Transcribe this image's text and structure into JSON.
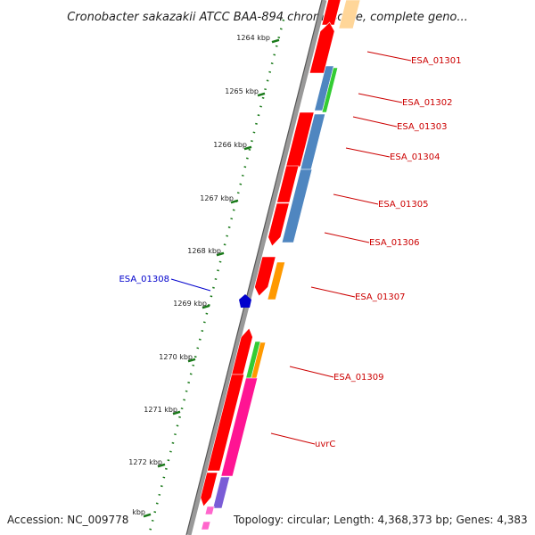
{
  "title": "Cronobacter sakazakii ATCC BAA-894 chromosome, complete geno...",
  "footer": {
    "accession": "Accession: NC_009778",
    "topology": "Topology: circular; Length: 4,368,373 bp; Genes: 4,383"
  },
  "colors": {
    "label": "#cc0000",
    "label_highlight": "#0000cc",
    "backbone": "#888888",
    "tick": "#1a7a1a",
    "red": "#ff0000",
    "blue": "#4f86c0",
    "green": "#33cc33",
    "orange": "#ff9900",
    "magenta": "#ff1493",
    "purple": "#7a5cd6",
    "pink": "#ff66cc",
    "peach": "#ffd699"
  },
  "ticks": [
    {
      "label": "1264 kbp"
    },
    {
      "label": "1265 kbp"
    },
    {
      "label": "1266 kbp"
    },
    {
      "label": "1267 kbp"
    },
    {
      "label": "1268 kbp"
    },
    {
      "label": "1269 kbp"
    },
    {
      "label": "1270 kbp"
    },
    {
      "label": "1271 kbp"
    },
    {
      "label": "1272 kbp"
    },
    {
      "label": "kbp"
    }
  ],
  "gene_labels": [
    {
      "text": "ESA_01301"
    },
    {
      "text": "ESA_01302"
    },
    {
      "text": "ESA_01303"
    },
    {
      "text": "ESA_01304"
    },
    {
      "text": "ESA_01305"
    },
    {
      "text": "ESA_01306"
    },
    {
      "text": "ESA_01307"
    },
    {
      "text": "ESA_01308"
    },
    {
      "text": "ESA_01309"
    },
    {
      "text": "uvrC"
    }
  ]
}
